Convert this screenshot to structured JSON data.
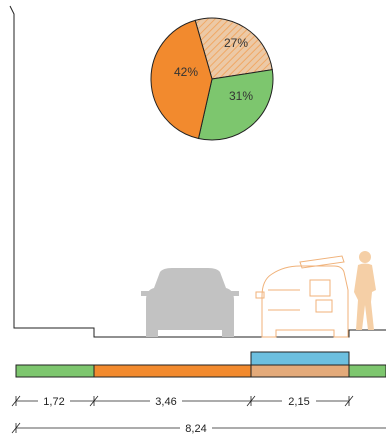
{
  "chart_data": {
    "type": "pie",
    "slices": [
      {
        "label": "27%",
        "value": 27,
        "color": "#e7b98f",
        "pattern": "hatched"
      },
      {
        "label": "31%",
        "value": 31,
        "color": "#7dc66e"
      },
      {
        "label": "42%",
        "value": 42,
        "color": "#f28a2e"
      }
    ]
  },
  "street_bar": {
    "segments": [
      {
        "name": "sidewalk-left",
        "color": "#7dc66e"
      },
      {
        "name": "carriageway",
        "color": "#f28a2e"
      },
      {
        "name": "parking",
        "color": "#e3aa7a"
      },
      {
        "name": "sidewalk-right",
        "color": "#7dc66e"
      }
    ],
    "overlay": {
      "name": "overlay",
      "color": "#6cbfdf"
    }
  },
  "dimensions": {
    "segments": [
      "1,72",
      "3,46",
      "2,15"
    ],
    "total": "8,24"
  },
  "colors": {
    "outline": "#222222",
    "car": "#c2c2c2",
    "van_outline": "#f0b27a",
    "pedestrian": "#f5cfa6"
  }
}
